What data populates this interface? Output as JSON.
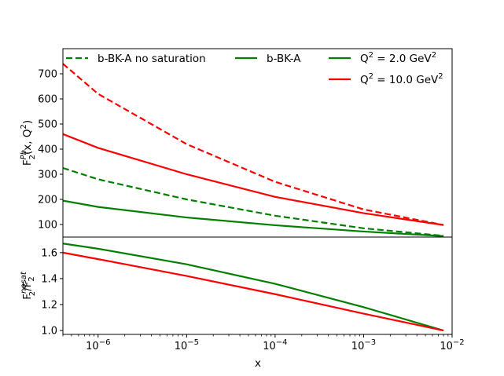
{
  "chart_data": [
    {
      "panel": "top",
      "type": "line",
      "xscale": "log",
      "xlim": [
        4e-07,
        0.01
      ],
      "ylim": [
        50,
        800
      ],
      "ylabel": "F_2^{Pb}(x, Q^2)",
      "ylabel_parts": {
        "base": "F",
        "sub": "2",
        "sup": "Pb",
        "args": "(x, Q",
        "args_sup": "2",
        "close": ")"
      },
      "yticks": [
        100,
        200,
        300,
        400,
        500,
        600,
        700
      ],
      "ytick_labels": [
        "100",
        "200",
        "300",
        "400",
        "500",
        "600",
        "700"
      ],
      "series": [
        {
          "name": "b-BK-A no saturation, Q2 = 2.0",
          "color": "#008000",
          "style": "dashed",
          "x": [
            4e-07,
            1e-06,
            1e-05,
            0.0001,
            0.001,
            0.008
          ],
          "y": [
            325,
            280,
            200,
            135,
            85,
            55
          ]
        },
        {
          "name": "b-BK-A, Q2 = 2.0",
          "color": "#008000",
          "style": "solid",
          "x": [
            4e-07,
            1e-06,
            1e-05,
            0.0001,
            0.001,
            0.008
          ],
          "y": [
            195,
            170,
            128,
            97,
            72,
            54
          ]
        },
        {
          "name": "b-BK-A no saturation, Q2 = 10.0",
          "color": "#ff0000",
          "style": "dashed",
          "x": [
            4e-07,
            1e-06,
            1e-05,
            0.0001,
            0.001,
            0.008
          ],
          "y": [
            740,
            620,
            420,
            270,
            160,
            98
          ]
        },
        {
          "name": "b-BK-A, Q2 = 10.0",
          "color": "#ff0000",
          "style": "solid",
          "x": [
            4e-07,
            1e-06,
            1e-05,
            0.0001,
            0.001,
            0.008
          ],
          "y": [
            460,
            405,
            300,
            210,
            145,
            98
          ]
        }
      ]
    },
    {
      "panel": "bottom",
      "type": "line",
      "xscale": "log",
      "xlim": [
        4e-07,
        0.01
      ],
      "ylim": [
        0.97,
        1.72
      ],
      "xlabel": "x",
      "ylabel": "F_2^{nosat}/F_2",
      "ylabel_parts": {
        "base": "F",
        "sub": "2",
        "sup": "nosat",
        "rest": "/F",
        "rest_sub": "2"
      },
      "yticks": [
        1.0,
        1.2,
        1.4,
        1.6
      ],
      "ytick_labels": [
        "1.0",
        "1.2",
        "1.4",
        "1.6"
      ],
      "xticks": [
        1e-06,
        1e-05,
        0.0001,
        0.001,
        0.01
      ],
      "xtick_labels": [
        {
          "base": "10",
          "exp": "−6"
        },
        {
          "base": "10",
          "exp": "−5"
        },
        {
          "base": "10",
          "exp": "−4"
        },
        {
          "base": "10",
          "exp": "−3"
        },
        {
          "base": "10",
          "exp": "−2"
        }
      ],
      "series": [
        {
          "name": "Q2 = 2.0 GeV2",
          "color": "#008000",
          "style": "solid",
          "x": [
            4e-07,
            1e-06,
            1e-05,
            0.0001,
            0.001,
            0.008
          ],
          "y": [
            1.67,
            1.63,
            1.51,
            1.36,
            1.18,
            1.0
          ]
        },
        {
          "name": "Q2 = 10.0 GeV2",
          "color": "#ff0000",
          "style": "solid",
          "x": [
            4e-07,
            1e-06,
            1e-05,
            0.0001,
            0.001,
            0.008
          ],
          "y": [
            1.6,
            1.55,
            1.42,
            1.28,
            1.13,
            1.0
          ]
        }
      ]
    }
  ],
  "legend": {
    "placement": "top",
    "entries": [
      {
        "label": "b-BK-A no saturation",
        "color": "#008000",
        "style": "dashed"
      },
      {
        "label": "b-BK-A",
        "color": "#008000",
        "style": "solid"
      },
      {
        "label_base": "Q",
        "label_sup": "2",
        "label_mid": " = 2.0 GeV",
        "label_sup2": "2",
        "color": "#008000",
        "style": "solid"
      },
      {
        "label_base": "Q",
        "label_sup": "2",
        "label_mid": " = 10.0 GeV",
        "label_sup2": "2",
        "color": "#ff0000",
        "style": "solid"
      }
    ]
  }
}
